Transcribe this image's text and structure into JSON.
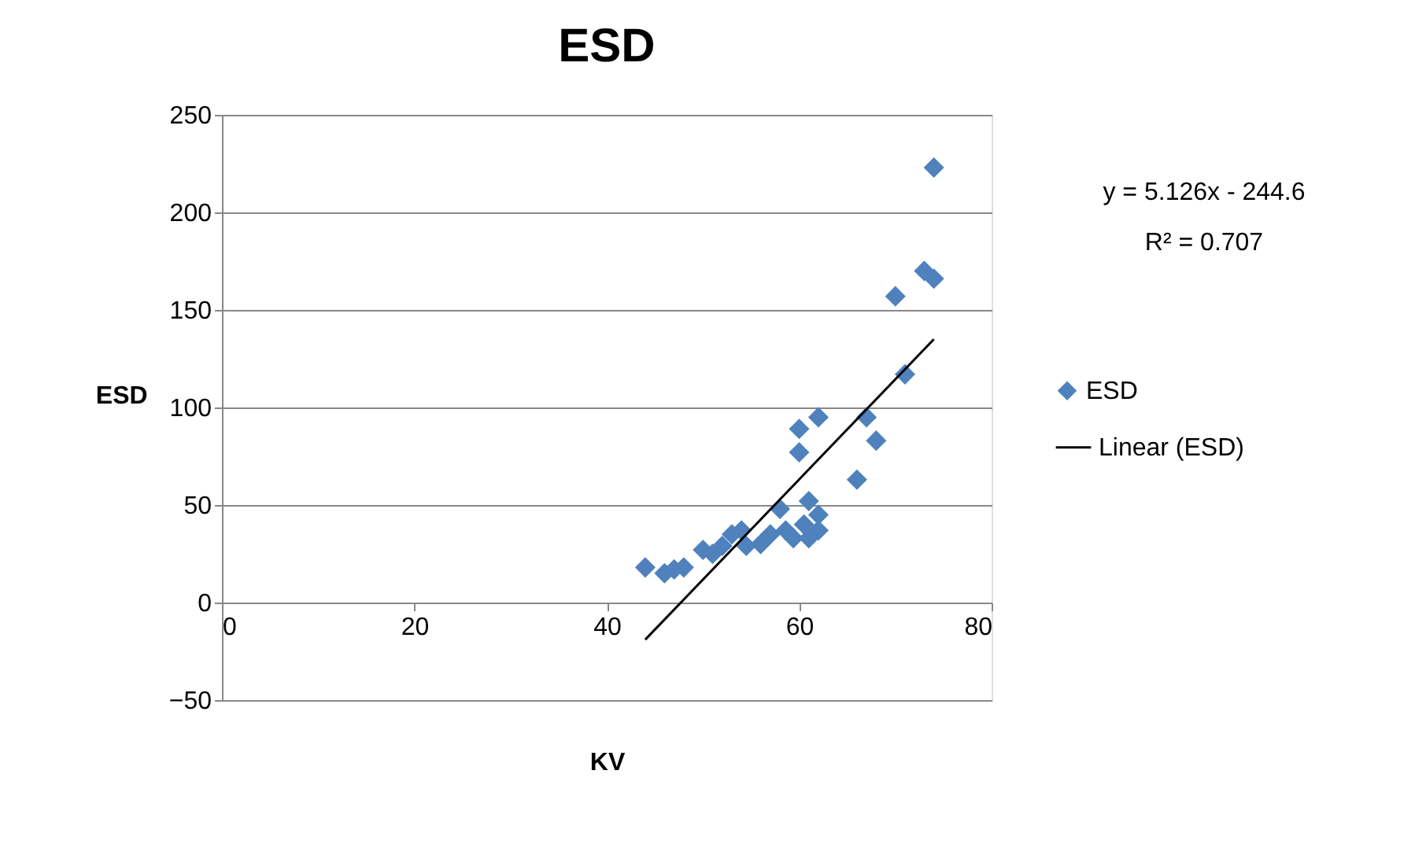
{
  "chart_data": {
    "type": "scatter",
    "title": "ESD",
    "xlabel": "KV",
    "ylabel": "ESD",
    "xlim": [
      0,
      80
    ],
    "xticks": [
      0,
      20,
      40,
      60,
      80
    ],
    "ylim": [
      -50,
      250
    ],
    "yticks": [
      -50,
      0,
      50,
      100,
      150,
      200,
      250
    ],
    "grid": "y",
    "legend": "right",
    "annotations": [
      "y = 5.126x - 244.6",
      "R² = 0.707"
    ],
    "series": [
      {
        "name": "ESD",
        "marker": "diamond",
        "color": "#4f81bd",
        "x": [
          44,
          46,
          47,
          48,
          50,
          51,
          52,
          53,
          54,
          54.5,
          56,
          57,
          58,
          58.6,
          59.4,
          60,
          60,
          62,
          60.5,
          61,
          62,
          62,
          61,
          66,
          67,
          68,
          70,
          71,
          73,
          74,
          74
        ],
        "values": [
          18,
          15,
          17,
          18,
          27,
          25,
          29,
          35,
          37,
          29,
          30,
          35,
          48,
          37,
          33,
          89,
          77,
          95,
          40,
          52,
          45,
          37,
          33,
          63,
          95,
          83,
          157,
          117,
          170,
          166,
          223
        ]
      },
      {
        "name": "Linear (ESD)",
        "type": "line",
        "color": "#000000",
        "line_style": "solid",
        "x": [
          44,
          74
        ],
        "values": [
          -19,
          135
        ]
      }
    ]
  }
}
